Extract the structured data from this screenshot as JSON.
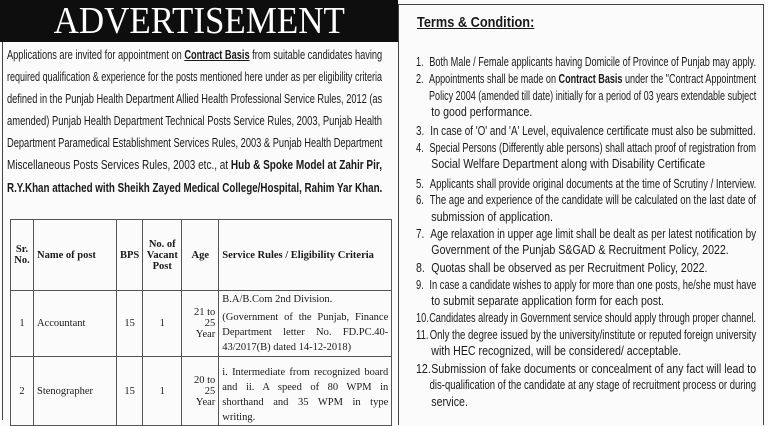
{
  "banner": "ADVERTISEMENT",
  "intro": {
    "l1a": "Applications are invited for appointment on",
    "l1b": "Contract Basis",
    "l1c": "from suitable candidates having",
    "l2": "required qualification & experience for the posts mentioned here under as per eligibility criteria",
    "l3": "defined in the Punjab Health Department Allied Health Professional Service Rules, 2012 (as",
    "l4": "amended) Punjab Health Department Technical Posts Service Rules, 2003, Punjab Health",
    "l5": "Department Paramedical Establishment Services Rules, 2003 & Punjab Health Department",
    "l6a": "Miscellaneous Posts Services Rules, 2003 etc., at",
    "l6b": "Hub & Spoke Model at Zahir Pir,",
    "l7": "R.Y.Khan attached with Sheikh Zayed Medical College/Hospital, Rahim Yar Khan."
  },
  "table": {
    "headers": [
      "Sr. No.",
      "Name of post",
      "BPS",
      "No. of Vacant Post",
      "Age",
      "Service Rules / Eligibility Criteria"
    ],
    "rows": [
      {
        "sr": "1",
        "post": "Accountant",
        "bps": "15",
        "vacant": "1",
        "age": "21 to 25 Year",
        "criteria1": "B.A/B.Com 2nd Division.",
        "criteria2": "(Government of the Punjab, Finance Department letter No. FD.PC.40-43/2017(B) dated 14-12-2018)"
      },
      {
        "sr": "2",
        "post": "Stenographer",
        "bps": "15",
        "vacant": "1",
        "age": "20 to 25 Year",
        "criteria1": "i. Intermediate from recognized board and ii. A speed of 80 WPM in shorthand and 35 WPM in type writing.",
        "criteria2": ""
      }
    ]
  },
  "terms": {
    "heading": "Terms & Condition:",
    "items": [
      {
        "n": "1.",
        "lines": [
          "Both Male / Female applicants having Domicile of Province of Punjab may apply."
        ]
      },
      {
        "n": "2.",
        "pre": "Appointments shall be made on ",
        "bold": "Contract Basis",
        "post": " under the \"Contract Appointment",
        "lines": [
          "Policy 2004 (amended till date) initially for a period of 03 years extendable subject",
          "to good performance."
        ]
      },
      {
        "n": "3.",
        "lines": [
          "In case of 'O' and 'A' Level, equivalence certificate must also be submitted."
        ]
      },
      {
        "n": "4.",
        "lines": [
          "Special Persons (Differently able persons) shall attach proof of registration from",
          "Social Welfare Department along with Disability Certificate"
        ]
      },
      {
        "n": "5.",
        "lines": [
          "Applicants shall provide original documents at the time of Scrutiny / Interview."
        ]
      },
      {
        "n": "6.",
        "lines": [
          "The age and experience of the candidate will be calculated on the last date of",
          "submission of application."
        ]
      },
      {
        "n": "7.",
        "lines": [
          "Age relaxation in upper age limit shall be dealt as per latest notification by",
          "Government of the Punjab S&GAD & Recruitment Policy, 2022."
        ]
      },
      {
        "n": "8.",
        "lines": [
          "Quotas shall be observed as per Recruitment Policy, 2022."
        ]
      },
      {
        "n": "9.",
        "lines": [
          "In case a candidate wishes to apply for more than one posts, he/she must have",
          "to submit separate application form for each post."
        ]
      },
      {
        "n": "10.",
        "lines": [
          "Candidates already in Government service should apply through proper channel."
        ]
      },
      {
        "n": "11.",
        "lines": [
          "Only the degree issued by the university/institute or reputed foreign university",
          "with HEC recognized, will be considered/ acceptable."
        ]
      },
      {
        "n": "12.",
        "lines": [
          "Submission of fake documents or concealment of any fact will lead to",
          "dis-qualification of the candidate at any stage of recruitment process or during",
          "service."
        ]
      }
    ]
  }
}
